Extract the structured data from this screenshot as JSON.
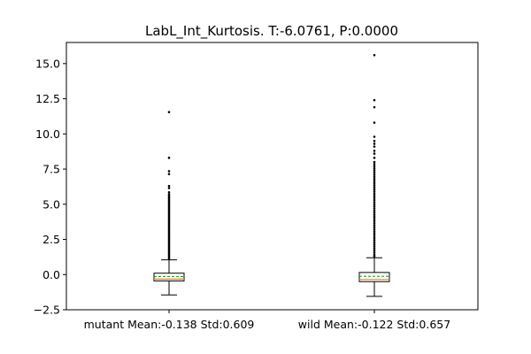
{
  "chart_data": {
    "type": "box",
    "title": "LabL_Int_Kurtosis. T:-6.0761, P:0.0000",
    "xlabel": "",
    "ylabel": "",
    "ylim": [
      -2.5,
      16.5
    ],
    "yticks": [
      -2.5,
      0.0,
      2.5,
      5.0,
      7.5,
      10.0,
      12.5,
      15.0
    ],
    "ytick_labels": [
      "−2.5",
      "0.0",
      "2.5",
      "5.0",
      "7.5",
      "10.0",
      "12.5",
      "15.0"
    ],
    "grid": false,
    "categories": [
      "mutant Mean:-0.138 Std:0.609",
      "wild Mean:-0.122 Std:0.657"
    ],
    "boxes": [
      {
        "whisker_low": -1.45,
        "q1": -0.45,
        "median": -0.32,
        "mean": -0.138,
        "q3": 0.1,
        "whisker_high": 1.05,
        "outliers": [
          11.55,
          8.3,
          7.35,
          7.15,
          6.3,
          6.15,
          5.85,
          5.7,
          5.6,
          5.5,
          5.4,
          5.3,
          5.2,
          5.1,
          5.0,
          4.9,
          4.8,
          4.7,
          4.6,
          4.5,
          4.4,
          4.3,
          4.2,
          4.1,
          4.0,
          3.9,
          3.8,
          3.7,
          3.6,
          3.5,
          3.4,
          3.3,
          3.2,
          3.1,
          3.0,
          2.9,
          2.8,
          2.7,
          2.6,
          2.5,
          2.4,
          2.3,
          2.2,
          2.1,
          2.0,
          1.9,
          1.8,
          1.7,
          1.6,
          1.5,
          1.4,
          1.3,
          1.2,
          1.1
        ]
      },
      {
        "whisker_low": -1.55,
        "q1": -0.5,
        "median": -0.35,
        "mean": -0.122,
        "q3": 0.15,
        "whisker_high": 1.2,
        "outliers": [
          15.6,
          12.4,
          11.9,
          10.8,
          9.8,
          9.5,
          9.3,
          9.1,
          8.8,
          8.6,
          8.3,
          8.0,
          7.85,
          7.7,
          7.55,
          7.4,
          7.25,
          7.1,
          6.95,
          6.8,
          6.65,
          6.5,
          6.35,
          6.2,
          6.05,
          5.9,
          5.75,
          5.6,
          5.45,
          5.3,
          5.15,
          5.0,
          4.85,
          4.7,
          4.55,
          4.4,
          4.25,
          4.1,
          3.95,
          3.8,
          3.65,
          3.5,
          3.35,
          3.2,
          3.05,
          2.9,
          2.75,
          2.6,
          2.45,
          2.3,
          2.15,
          2.0,
          1.85,
          1.7,
          1.55,
          1.4,
          1.3
        ]
      }
    ],
    "colors": {
      "box": "#000000",
      "median": "#ff7f0e",
      "mean": "#2ca02c",
      "outlier": "#000000"
    }
  }
}
